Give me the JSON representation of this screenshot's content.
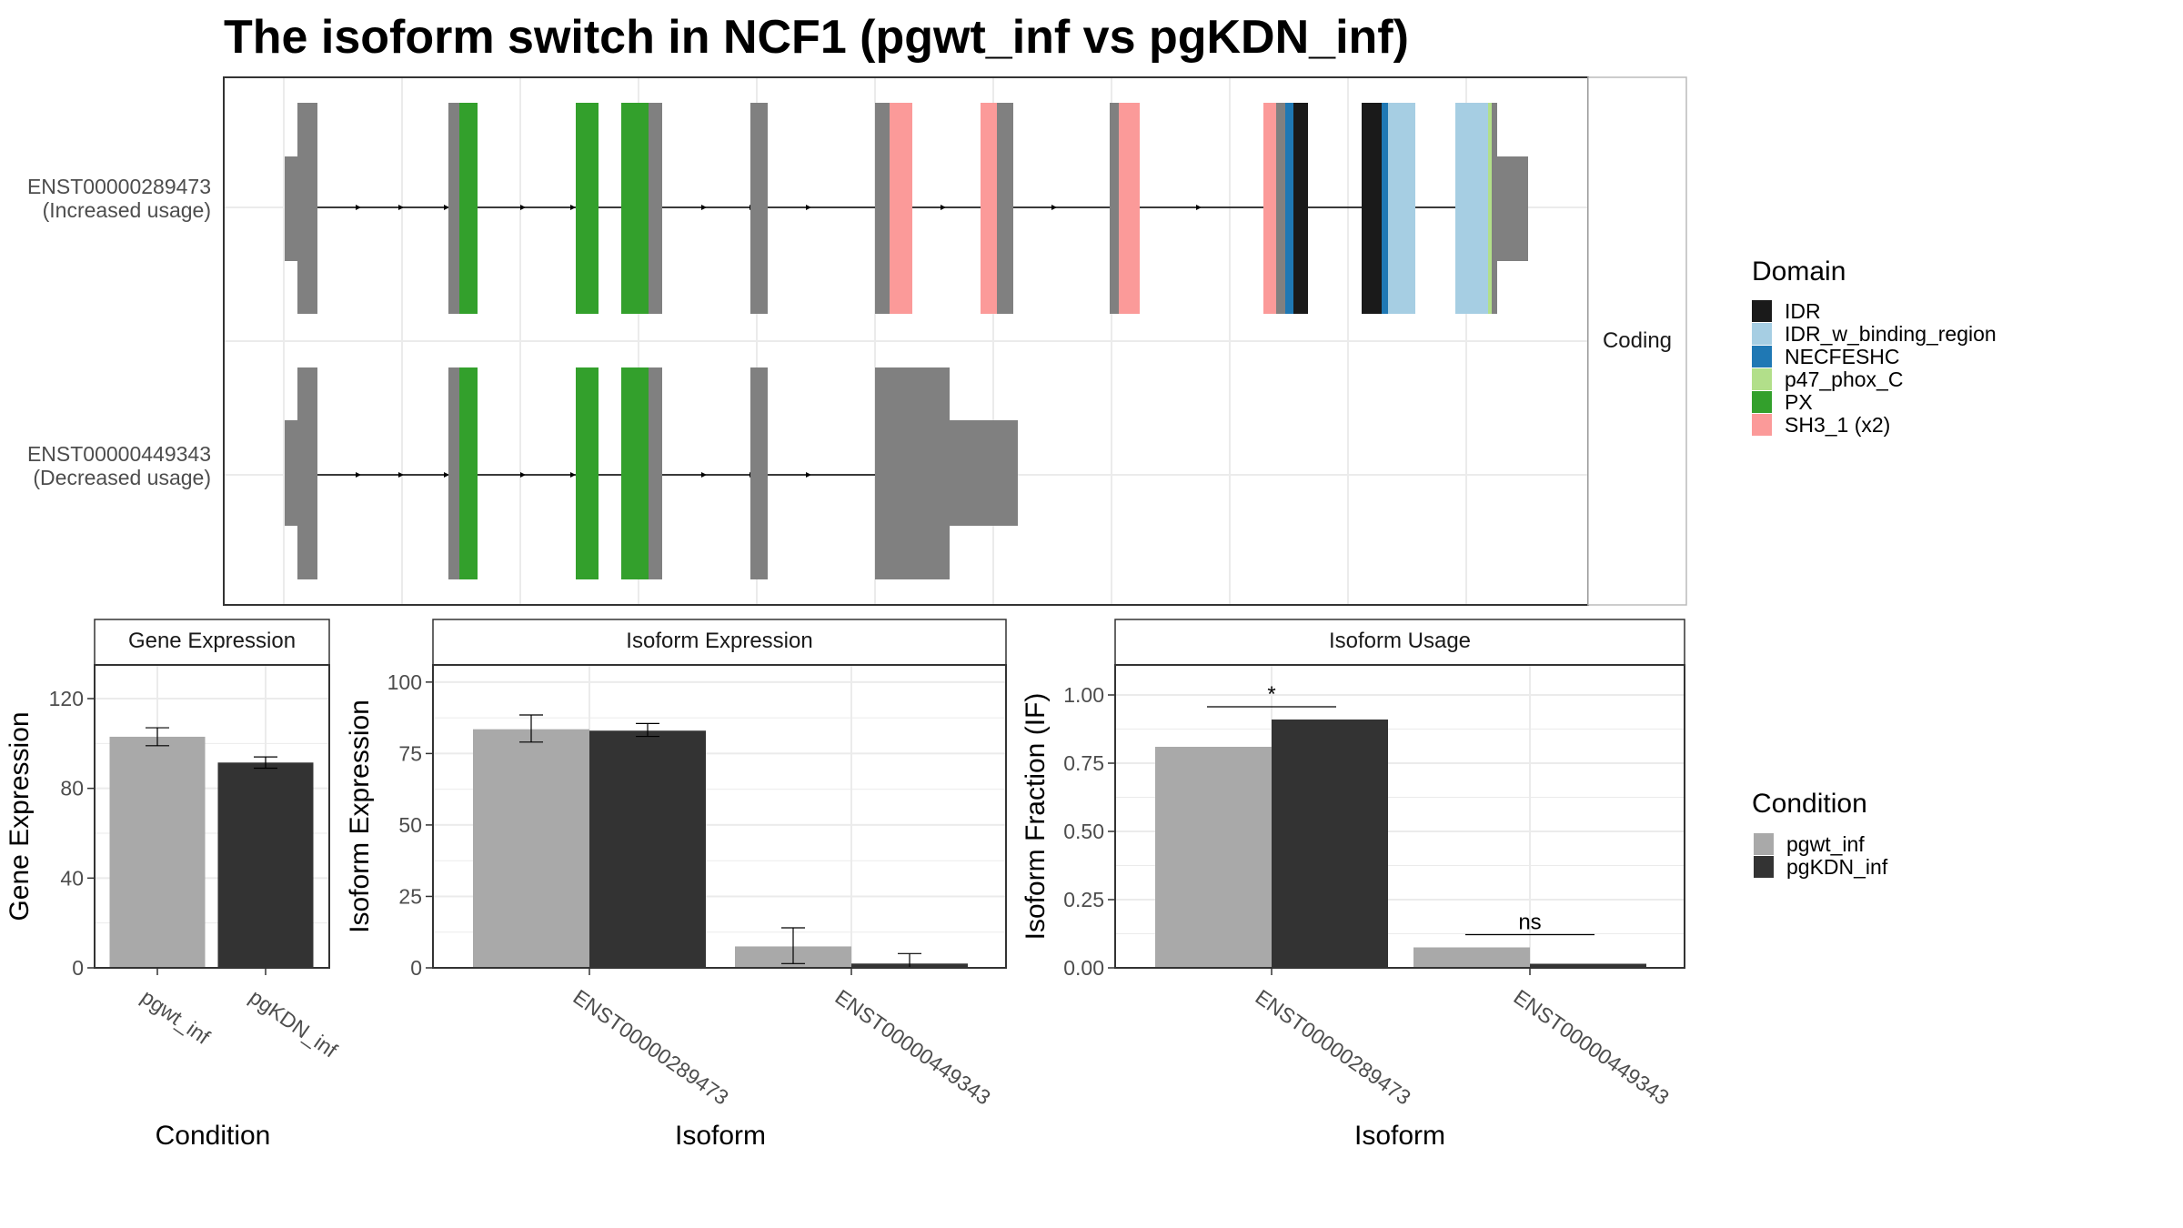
{
  "title": "The isoform switch in NCF1 (pgwt_inf vs pgKDN_inf)",
  "colors": {
    "exon": "#808080",
    "IDR": "#1a1a1a",
    "IDR_w_binding_region": "#a6cee3",
    "NECFESHC": "#1f78b4",
    "p47_phox_C": "#b2df8a",
    "PX": "#33a02c",
    "SH3_1 (x2)": "#fb9a99",
    "pgwt_inf": "#a9a9a9",
    "pgKDN_inf": "#333333",
    "grid": "#ebebeb",
    "panel_border": "#333333"
  },
  "structure": {
    "facet_label": "Coding",
    "transcripts": [
      {
        "id": "ENST00000289473",
        "usage": "(Increased usage)"
      },
      {
        "id": "ENST00000449343",
        "usage": "(Decreased usage)"
      }
    ]
  },
  "domain_legend": {
    "title": "Domain",
    "items": [
      {
        "label": "IDR",
        "color": "#1a1a1a"
      },
      {
        "label": "IDR_w_binding_region",
        "color": "#a6cee3"
      },
      {
        "label": "NECFESHC",
        "color": "#1f78b4"
      },
      {
        "label": "p47_phox_C",
        "color": "#b2df8a"
      },
      {
        "label": "PX",
        "color": "#33a02c"
      },
      {
        "label": "SH3_1 (x2)",
        "color": "#fb9a99"
      }
    ]
  },
  "condition_legend": {
    "title": "Condition",
    "items": [
      {
        "label": "pgwt_inf",
        "color": "#a9a9a9"
      },
      {
        "label": "pgKDN_inf",
        "color": "#333333"
      }
    ]
  },
  "chart_data": [
    {
      "type": "bar",
      "title": "Gene Expression",
      "xlabel": "Condition",
      "ylabel": "Gene Expression",
      "categories": [
        "pgwt_inf",
        "pgKDN_inf"
      ],
      "values": [
        103,
        91.5
      ],
      "error": [
        [
          99,
          107
        ],
        [
          89,
          94
        ]
      ],
      "ylim": [
        0,
        135
      ],
      "yticks": [
        0,
        40,
        80,
        120
      ],
      "grid": true
    },
    {
      "type": "bar",
      "title": "Isoform Expression",
      "xlabel": "Isoform",
      "ylabel": "Isoform Expression",
      "categories": [
        "ENST00000289473",
        "ENST00000449343"
      ],
      "series": [
        {
          "name": "pgwt_inf",
          "values": [
            83.5,
            7.5
          ],
          "error": [
            [
              79,
              88.5
            ],
            [
              1.5,
              14
            ]
          ]
        },
        {
          "name": "pgKDN_inf",
          "values": [
            83,
            1.5
          ],
          "error": [
            [
              81,
              85.5
            ],
            [
              0,
              5
            ]
          ]
        }
      ],
      "ylim": [
        0,
        106
      ],
      "yticks": [
        0,
        25,
        50,
        75,
        100
      ],
      "grid": true
    },
    {
      "type": "bar",
      "title": "Isoform Usage",
      "xlabel": "Isoform",
      "ylabel": "Isoform Fraction (IF)",
      "categories": [
        "ENST00000289473",
        "ENST00000449343"
      ],
      "series": [
        {
          "name": "pgwt_inf",
          "values": [
            0.81,
            0.075
          ]
        },
        {
          "name": "pgKDN_inf",
          "values": [
            0.91,
            0.015
          ]
        }
      ],
      "significance": [
        "*",
        "ns"
      ],
      "ylim": [
        0,
        1.11
      ],
      "yticks": [
        "0.00",
        "0.25",
        "0.50",
        "0.75",
        "1.00"
      ],
      "grid": true
    }
  ]
}
